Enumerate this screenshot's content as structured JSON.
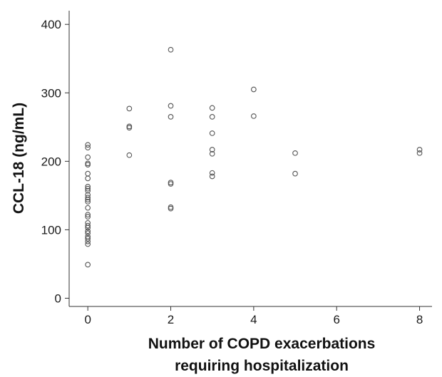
{
  "chart_data": {
    "type": "scatter",
    "title": "",
    "xlabel_lines": [
      "Number of COPD exacerbations",
      "requiring hospitalization"
    ],
    "ylabel": "CCL-18 (ng/mL)",
    "x_tick_labels": [
      "0",
      "2",
      "4",
      "6",
      "8"
    ],
    "y_tick_labels": [
      "0",
      "100",
      "200",
      "300",
      "400"
    ],
    "x_ticks": [
      0,
      2,
      4,
      6,
      8
    ],
    "y_ticks": [
      0,
      100,
      200,
      300,
      400
    ],
    "xlim": [
      -0.45,
      8.3
    ],
    "ylim": [
      -12,
      420
    ],
    "grid": false,
    "legend": "none",
    "marker": "open-circle",
    "marker_color": "#555555",
    "points": [
      {
        "x": 0,
        "y": 224
      },
      {
        "x": 0,
        "y": 220
      },
      {
        "x": 0,
        "y": 206
      },
      {
        "x": 0,
        "y": 197
      },
      {
        "x": 0,
        "y": 195
      },
      {
        "x": 0,
        "y": 182
      },
      {
        "x": 0,
        "y": 175
      },
      {
        "x": 0,
        "y": 163
      },
      {
        "x": 0,
        "y": 160
      },
      {
        "x": 0,
        "y": 157
      },
      {
        "x": 0,
        "y": 151
      },
      {
        "x": 0,
        "y": 147
      },
      {
        "x": 0,
        "y": 144
      },
      {
        "x": 0,
        "y": 141
      },
      {
        "x": 0,
        "y": 132
      },
      {
        "x": 0,
        "y": 122
      },
      {
        "x": 0,
        "y": 119
      },
      {
        "x": 0,
        "y": 110
      },
      {
        "x": 0,
        "y": 106
      },
      {
        "x": 0,
        "y": 103
      },
      {
        "x": 0,
        "y": 98
      },
      {
        "x": 0,
        "y": 95
      },
      {
        "x": 0,
        "y": 90
      },
      {
        "x": 0,
        "y": 87
      },
      {
        "x": 0,
        "y": 83
      },
      {
        "x": 0,
        "y": 79
      },
      {
        "x": 0,
        "y": 49
      },
      {
        "x": 1,
        "y": 277
      },
      {
        "x": 1,
        "y": 251
      },
      {
        "x": 1,
        "y": 249
      },
      {
        "x": 1,
        "y": 209
      },
      {
        "x": 2,
        "y": 363
      },
      {
        "x": 2,
        "y": 281
      },
      {
        "x": 2,
        "y": 265
      },
      {
        "x": 2,
        "y": 169
      },
      {
        "x": 2,
        "y": 167
      },
      {
        "x": 2,
        "y": 133
      },
      {
        "x": 2,
        "y": 131
      },
      {
        "x": 3,
        "y": 278
      },
      {
        "x": 3,
        "y": 265
      },
      {
        "x": 3,
        "y": 241
      },
      {
        "x": 3,
        "y": 217
      },
      {
        "x": 3,
        "y": 211
      },
      {
        "x": 3,
        "y": 183
      },
      {
        "x": 3,
        "y": 178
      },
      {
        "x": 4,
        "y": 305
      },
      {
        "x": 4,
        "y": 266
      },
      {
        "x": 5,
        "y": 212
      },
      {
        "x": 5,
        "y": 182
      },
      {
        "x": 8,
        "y": 217
      },
      {
        "x": 8,
        "y": 212
      }
    ]
  }
}
